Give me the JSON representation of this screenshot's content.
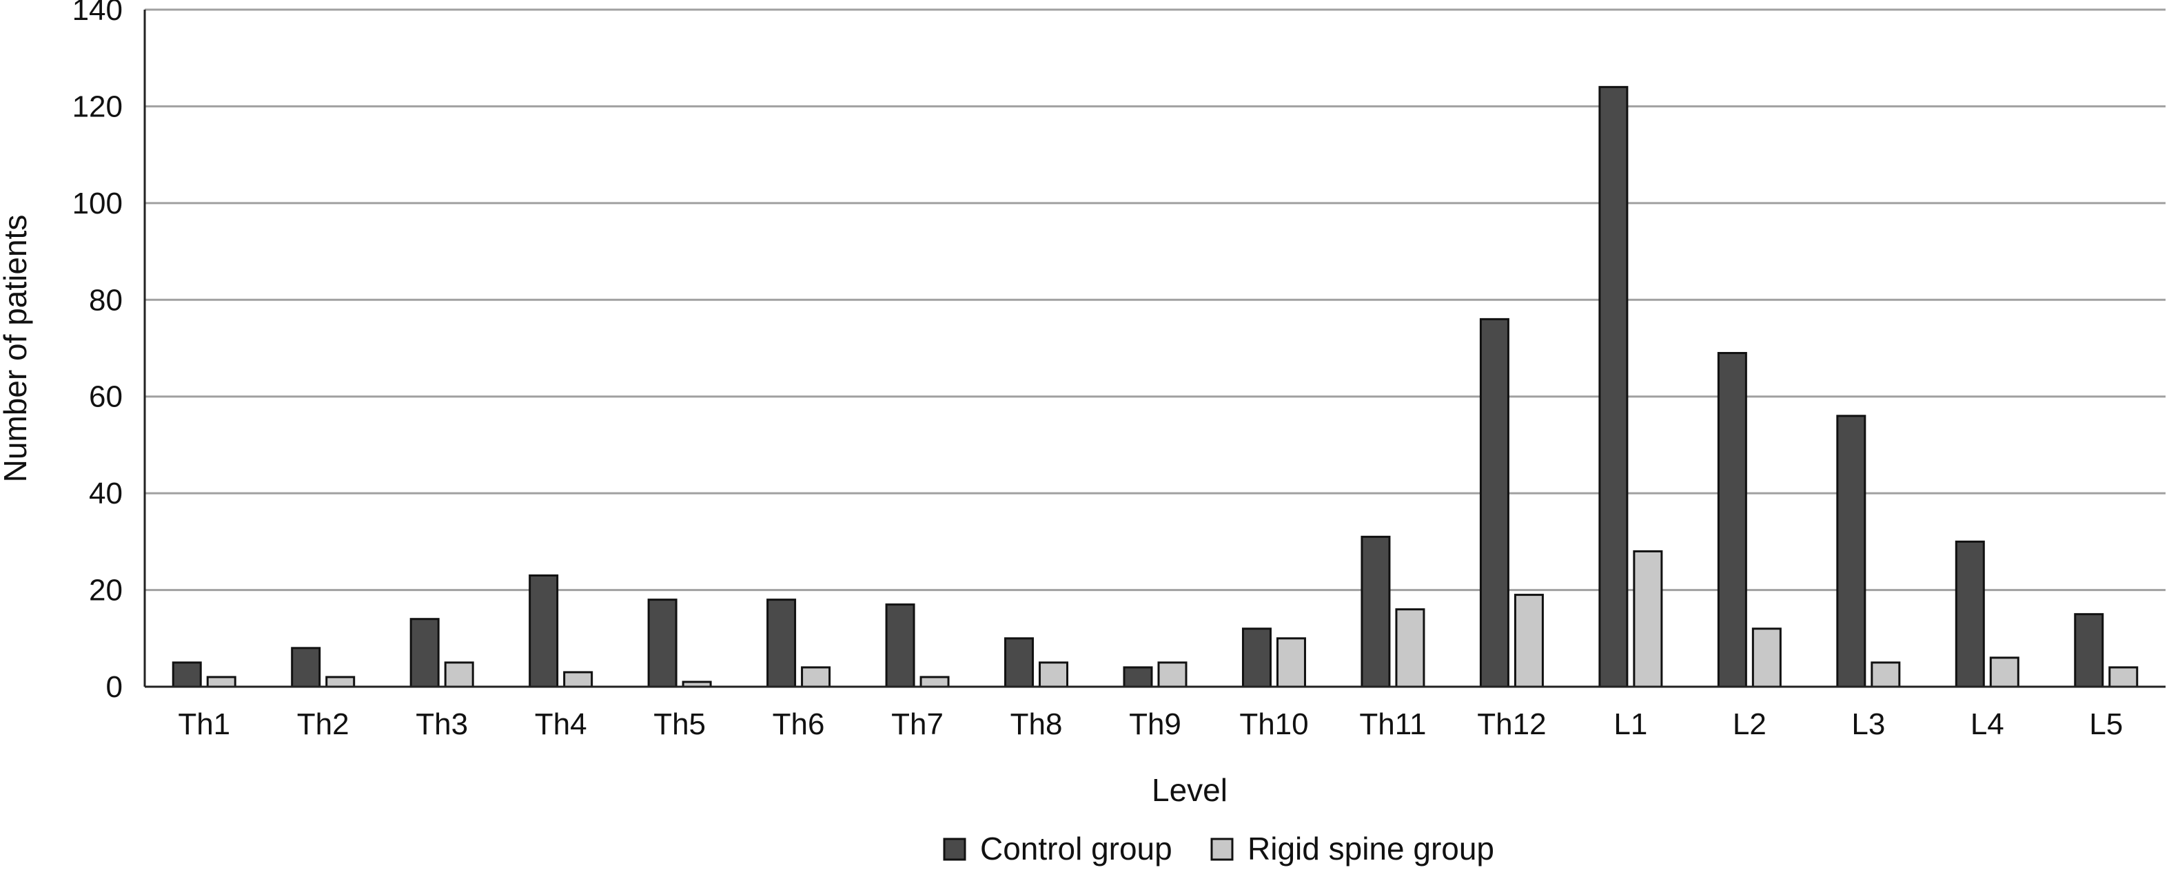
{
  "chart_data": {
    "type": "bar",
    "title": "",
    "xlabel": "Level",
    "ylabel": "Number of patients",
    "ylim": [
      0,
      140
    ],
    "yticks": [
      0,
      20,
      40,
      60,
      80,
      100,
      120,
      140
    ],
    "grid": true,
    "legend_position": "bottom",
    "categories": [
      "Th1",
      "Th2",
      "Th3",
      "Th4",
      "Th5",
      "Th6",
      "Th7",
      "Th8",
      "Th9",
      "Th10",
      "Th11",
      "Th12",
      "L1",
      "L2",
      "L3",
      "L4",
      "L5"
    ],
    "series": [
      {
        "name": "Control group",
        "color": "#4a4a4a",
        "values": [
          5,
          8,
          14,
          23,
          18,
          18,
          17,
          10,
          4,
          12,
          31,
          76,
          124,
          69,
          56,
          30,
          15
        ]
      },
      {
        "name": "Rigid spine group",
        "color": "#c8c8c8",
        "values": [
          2,
          2,
          5,
          3,
          1,
          4,
          2,
          5,
          5,
          10,
          16,
          19,
          28,
          12,
          5,
          6,
          4
        ]
      }
    ]
  }
}
